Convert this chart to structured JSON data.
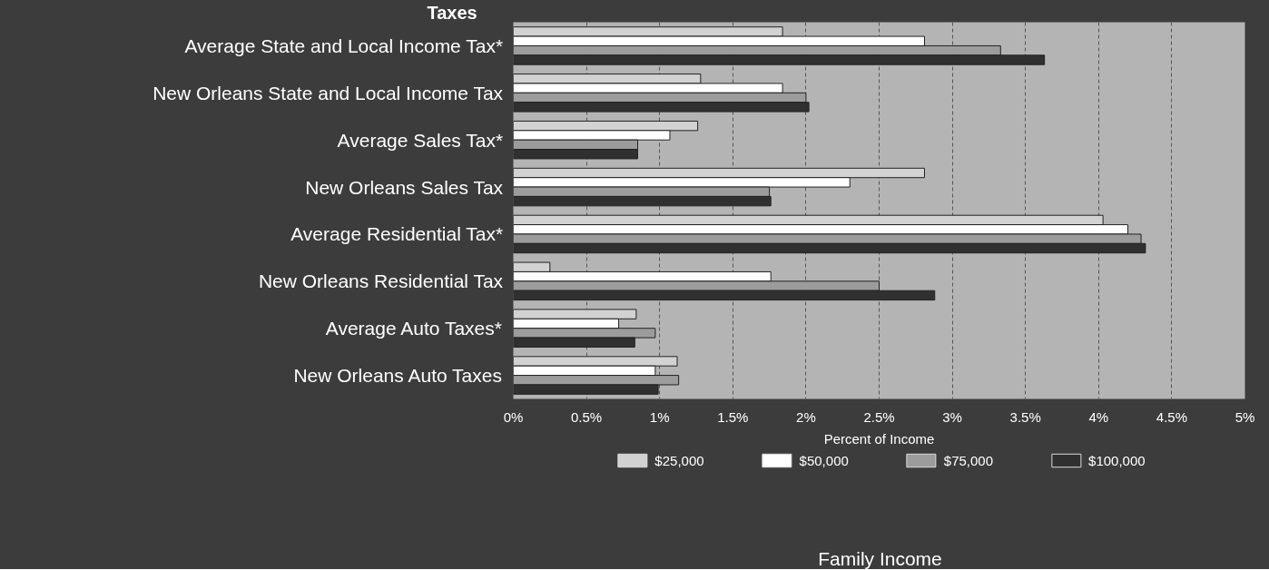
{
  "chart_data": {
    "type": "bar",
    "orientation": "horizontal",
    "ylabel": "Taxes",
    "xlabel": "Percent of Income",
    "legend_title": "Family Income",
    "categories": [
      "Average State and Local Income Tax*",
      "New Orleans State and Local Income Tax",
      "Average Sales Tax*",
      "New Orleans Sales Tax",
      "Average Residential Tax*",
      "New Orleans Residential Tax",
      "Average Auto Taxes*",
      "New Orleans Auto Taxes"
    ],
    "series": [
      {
        "name": "$25,000",
        "color": "#d2d2d2",
        "values": [
          1.84,
          1.28,
          1.26,
          2.81,
          4.03,
          0.25,
          0.84,
          1.12
        ]
      },
      {
        "name": "$50,000",
        "color": "#ffffff",
        "values": [
          2.81,
          1.84,
          1.07,
          2.3,
          4.2,
          1.76,
          0.72,
          0.97
        ]
      },
      {
        "name": "$75,000",
        "color": "#9c9c9c",
        "values": [
          3.33,
          2.0,
          0.85,
          1.75,
          4.29,
          2.5,
          0.97,
          1.13
        ]
      },
      {
        "name": "$100,000",
        "color": "#303030",
        "values": [
          3.63,
          2.02,
          0.85,
          1.76,
          4.32,
          2.88,
          0.83,
          0.99
        ]
      }
    ],
    "xlim": [
      0,
      5
    ],
    "xticks": [
      {
        "value": 0,
        "label": "0%"
      },
      {
        "value": 0.5,
        "label": "0.5%"
      },
      {
        "value": 1,
        "label": "1%"
      },
      {
        "value": 1.5,
        "label": "1.5%"
      },
      {
        "value": 2,
        "label": "2%"
      },
      {
        "value": 2.5,
        "label": "2.5%"
      },
      {
        "value": 3,
        "label": "3%"
      },
      {
        "value": 3.5,
        "label": "3.5%"
      },
      {
        "value": 4,
        "label": "4%"
      },
      {
        "value": 4.5,
        "label": "4.5%"
      },
      {
        "value": 5,
        "label": "5%"
      }
    ],
    "grid": "x",
    "legend": "bottom"
  }
}
